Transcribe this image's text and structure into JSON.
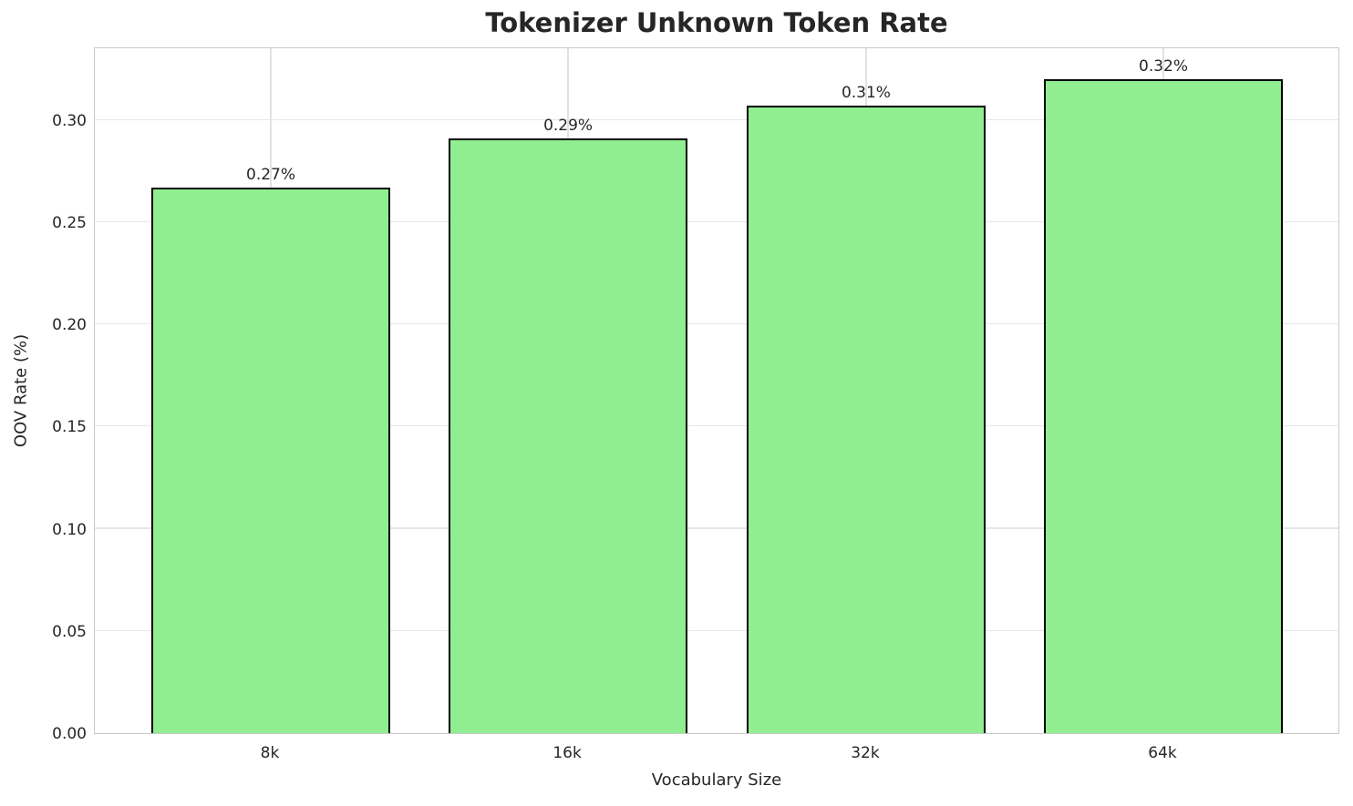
{
  "chart_data": {
    "type": "bar",
    "title": "Tokenizer Unknown Token Rate",
    "xlabel": "Vocabulary Size",
    "ylabel": "OOV Rate (%)",
    "categories": [
      "8k",
      "16k",
      "32k",
      "64k"
    ],
    "values": [
      0.267,
      0.291,
      0.307,
      0.32
    ],
    "bar_labels": [
      "0.27%",
      "0.29%",
      "0.31%",
      "0.32%"
    ],
    "ylim": [
      0,
      0.336
    ],
    "yticks": [
      0.0,
      0.05,
      0.1,
      0.15,
      0.2,
      0.25,
      0.3
    ],
    "ytick_labels": [
      "0.00",
      "0.05",
      "0.10",
      "0.15",
      "0.20",
      "0.25",
      "0.30"
    ],
    "grid": true,
    "legend_position": "none",
    "colors": {
      "bar_fill": "#90EE90",
      "bar_edge": "#000000",
      "grid": "#e6e6e6",
      "spine": "#c9c9c9",
      "text": "#262626",
      "background": "#ffffff"
    }
  }
}
